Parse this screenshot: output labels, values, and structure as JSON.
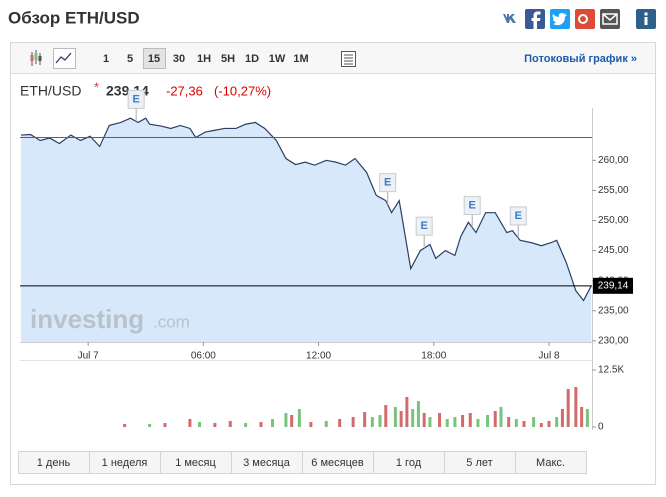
{
  "header": {
    "title": "Обзор ETH/USD"
  },
  "toolbar": {
    "intervals": [
      "1",
      "5",
      "15",
      "30",
      "1H",
      "5H",
      "1D",
      "1W",
      "1M"
    ],
    "selected_interval_index": 2,
    "streaming_link": "Потоковый график »"
  },
  "quote": {
    "symbol": "ETH/USD",
    "marker": "*",
    "price": "239,14",
    "change": "-27,36",
    "change_percent": "(-10,27%)"
  },
  "watermark": {
    "brand": "investing",
    "domain": ".com"
  },
  "ranges": [
    "1 день",
    "1 неделя",
    "1 месяц",
    "3 месяца",
    "6 месяцев",
    "1 год",
    "5 лет",
    "Макс."
  ],
  "chart_data": [
    {
      "type": "area",
      "color": "#2b3f63",
      "fill": "#d6e8fa",
      "xlim": [
        -3.55,
        26.24
      ],
      "ylim": [
        229.8,
        268.7
      ],
      "xticks": [
        {
          "value": 0,
          "label": "Jul 7"
        },
        {
          "value": 6,
          "label": "06:00"
        },
        {
          "value": 12,
          "label": "12:00"
        },
        {
          "value": 18,
          "label": "18:00"
        },
        {
          "value": 24,
          "label": "Jul 8"
        }
      ],
      "yticks": [
        {
          "value": 230,
          "label": "230,00"
        },
        {
          "value": 235,
          "label": "235,00"
        },
        {
          "value": 240,
          "label": "240,00"
        },
        {
          "value": 245,
          "label": "245,00"
        },
        {
          "value": 250,
          "label": "250,00"
        },
        {
          "value": 255,
          "label": "255,00"
        },
        {
          "value": 260,
          "label": "260,00"
        }
      ],
      "x": [
        -3.5,
        -3.0,
        -2.5,
        -2.0,
        -1.5,
        -0.9,
        -0.4,
        0.1,
        0.6,
        1.1,
        1.7,
        2.2,
        2.6,
        3.0,
        3.2,
        3.8,
        4.3,
        4.8,
        5.3,
        5.6,
        6.1,
        6.6,
        7.1,
        7.7,
        8.2,
        8.7,
        9.2,
        9.8,
        10.3,
        10.8,
        11.3,
        11.8,
        12.4,
        12.9,
        13.4,
        13.9,
        14.5,
        15.0,
        15.5,
        15.8,
        16.2,
        16.8,
        17.3,
        17.8,
        18.1,
        18.6,
        19.1,
        19.4,
        19.8,
        20.2,
        20.7,
        21.2,
        21.8,
        22.1,
        22.5,
        23.1,
        23.6,
        24.1,
        24.4,
        24.9,
        25.4,
        25.8,
        26.2
      ],
      "values": [
        264.2,
        264.3,
        263.3,
        263.7,
        262.8,
        264.2,
        263.3,
        264.0,
        262.3,
        265.8,
        266.3,
        267.0,
        266.3,
        267.0,
        266.0,
        265.7,
        265.3,
        265.8,
        265.3,
        263.8,
        264.7,
        265.0,
        265.3,
        265.3,
        266.0,
        266.3,
        265.3,
        263.3,
        260.3,
        259.3,
        259.7,
        259.2,
        260.0,
        259.7,
        259.2,
        260.3,
        258.0,
        254.2,
        253.3,
        251.3,
        253.3,
        242.0,
        245.0,
        246.0,
        243.7,
        245.0,
        244.2,
        247.3,
        249.7,
        248.0,
        251.3,
        251.3,
        248.0,
        248.3,
        246.7,
        246.3,
        245.8,
        246.3,
        246.7,
        243.0,
        238.3,
        236.7,
        239.14
      ],
      "hlines": [
        {
          "value": 263.8,
          "color": "#c0392b"
        },
        {
          "value": 239.14,
          "color": "#000000"
        }
      ],
      "events": [
        {
          "label": "E",
          "x": 2.5
        },
        {
          "label": "E",
          "x": 15.6
        },
        {
          "label": "E",
          "x": 17.5
        },
        {
          "label": "E",
          "x": 20.0
        },
        {
          "label": "E",
          "x": 22.4
        }
      ]
    },
    {
      "type": "bar",
      "xlim": [
        -3.55,
        26.24
      ],
      "ylim": [
        0,
        14700
      ],
      "yticks": [
        0,
        {
          "value": 12500,
          "label": "12.5K"
        }
      ],
      "x": [
        1.9,
        3.2,
        4.0,
        5.3,
        5.8,
        6.6,
        7.4,
        8.2,
        9.0,
        9.6,
        10.3,
        10.6,
        11.0,
        11.6,
        12.4,
        13.1,
        13.8,
        14.4,
        14.8,
        15.2,
        15.5,
        16.0,
        16.3,
        16.6,
        16.9,
        17.2,
        17.5,
        17.8,
        18.3,
        18.7,
        19.1,
        19.5,
        19.9,
        20.3,
        20.8,
        21.2,
        21.5,
        21.9,
        22.3,
        22.7,
        23.2,
        23.6,
        24.0,
        24.4,
        24.7,
        25.0,
        25.4,
        25.7,
        26.0
      ],
      "values": [
        660,
        660,
        880,
        1750,
        1100,
        880,
        1320,
        880,
        1100,
        1750,
        3070,
        2630,
        3950,
        1100,
        1320,
        1750,
        2190,
        3290,
        2190,
        2630,
        4820,
        4390,
        3510,
        6580,
        3950,
        5700,
        3070,
        2190,
        3070,
        1750,
        2190,
        2630,
        3070,
        1750,
        2630,
        3510,
        4390,
        2190,
        1750,
        1320,
        2190,
        880,
        1320,
        2190,
        3950,
        8330,
        8770,
        4390,
        3950
      ],
      "colors": [
        "#d36b6b",
        "#79c47c",
        "#d36b6b",
        "#d36b6b",
        "#79c47c",
        "#d36b6b",
        "#d36b6b",
        "#79c47c",
        "#d36b6b",
        "#79c47c",
        "#79c47c",
        "#d36b6b",
        "#79c47c",
        "#d36b6b",
        "#79c47c",
        "#d36b6b",
        "#d36b6b",
        "#d36b6b",
        "#79c47c",
        "#79c47c",
        "#d36b6b",
        "#79c47c",
        "#d36b6b",
        "#d36b6b",
        "#79c47c",
        "#79c47c",
        "#d36b6b",
        "#79c47c",
        "#d36b6b",
        "#79c47c",
        "#79c47c",
        "#d36b6b",
        "#d36b6b",
        "#79c47c",
        "#79c47c",
        "#d36b6b",
        "#79c47c",
        "#d36b6b",
        "#79c47c",
        "#d36b6b",
        "#79c47c",
        "#d36b6b",
        "#d36b6b",
        "#79c47c",
        "#d36b6b",
        "#d36b6b",
        "#d36b6b",
        "#d36b6b",
        "#79c47c"
      ]
    }
  ]
}
